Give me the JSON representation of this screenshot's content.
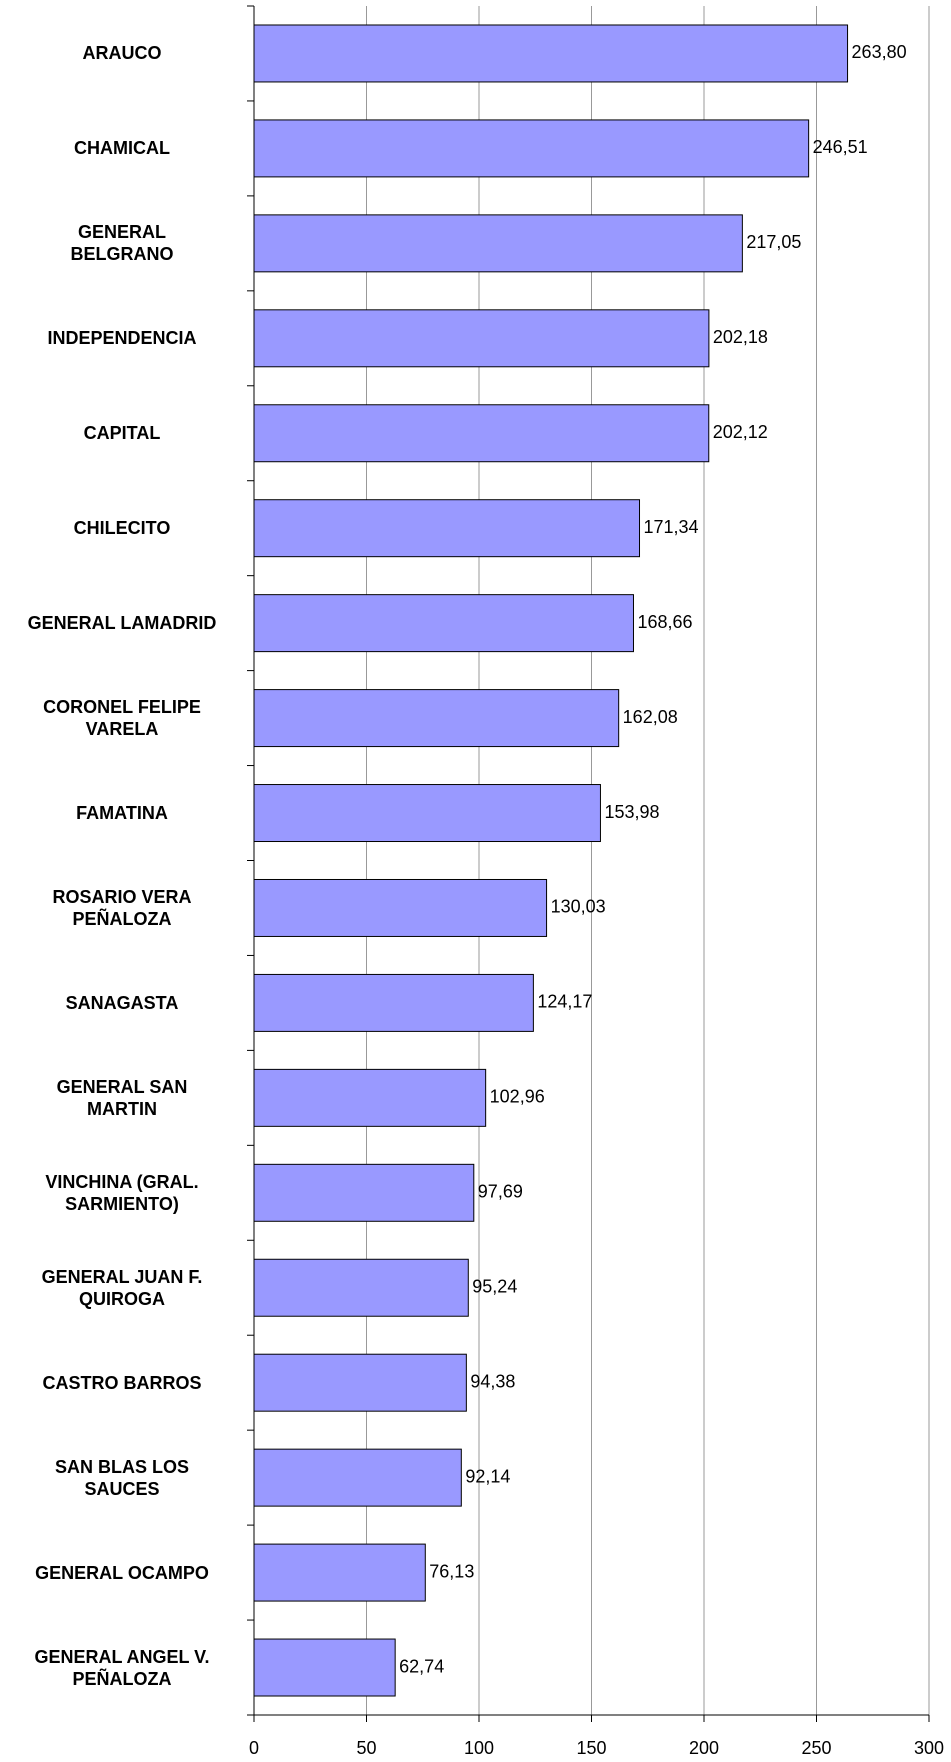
{
  "chart_data": {
    "type": "hbar",
    "categories": [
      "ARAUCO",
      "CHAMICAL",
      "GENERAL\nBELGRANO",
      "INDEPENDENCIA",
      "CAPITAL",
      "CHILECITO",
      "GENERAL LAMADRID",
      "CORONEL FELIPE\nVARELA",
      "FAMATINA",
      "ROSARIO VERA\nPEÑALOZA",
      "SANAGASTA",
      "GENERAL SAN\nMARTIN",
      "VINCHINA (GRAL.\nSARMIENTO)",
      "GENERAL JUAN F.\nQUIROGA",
      "CASTRO BARROS",
      "SAN BLAS LOS\nSAUCES",
      "GENERAL OCAMPO",
      "GENERAL ANGEL V.\nPEÑALOZA"
    ],
    "values": [
      263.8,
      246.51,
      217.05,
      202.18,
      202.12,
      171.34,
      168.66,
      162.08,
      153.98,
      130.03,
      124.17,
      102.96,
      97.69,
      95.24,
      94.38,
      92.14,
      76.13,
      62.74
    ],
    "value_labels": [
      "263,80",
      "246,51",
      "217,05",
      "202,18",
      "202,12",
      "171,34",
      "168,66",
      "162,08",
      "153,98",
      "130,03",
      "124,17",
      "102,96",
      "97,69",
      "95,24",
      "94,38",
      "92,14",
      "76,13",
      "62,74"
    ],
    "color": "#9999ff",
    "xlim": [
      0,
      300
    ],
    "xticks": [
      0,
      50,
      100,
      150,
      200,
      250,
      300
    ],
    "grid": true
  }
}
